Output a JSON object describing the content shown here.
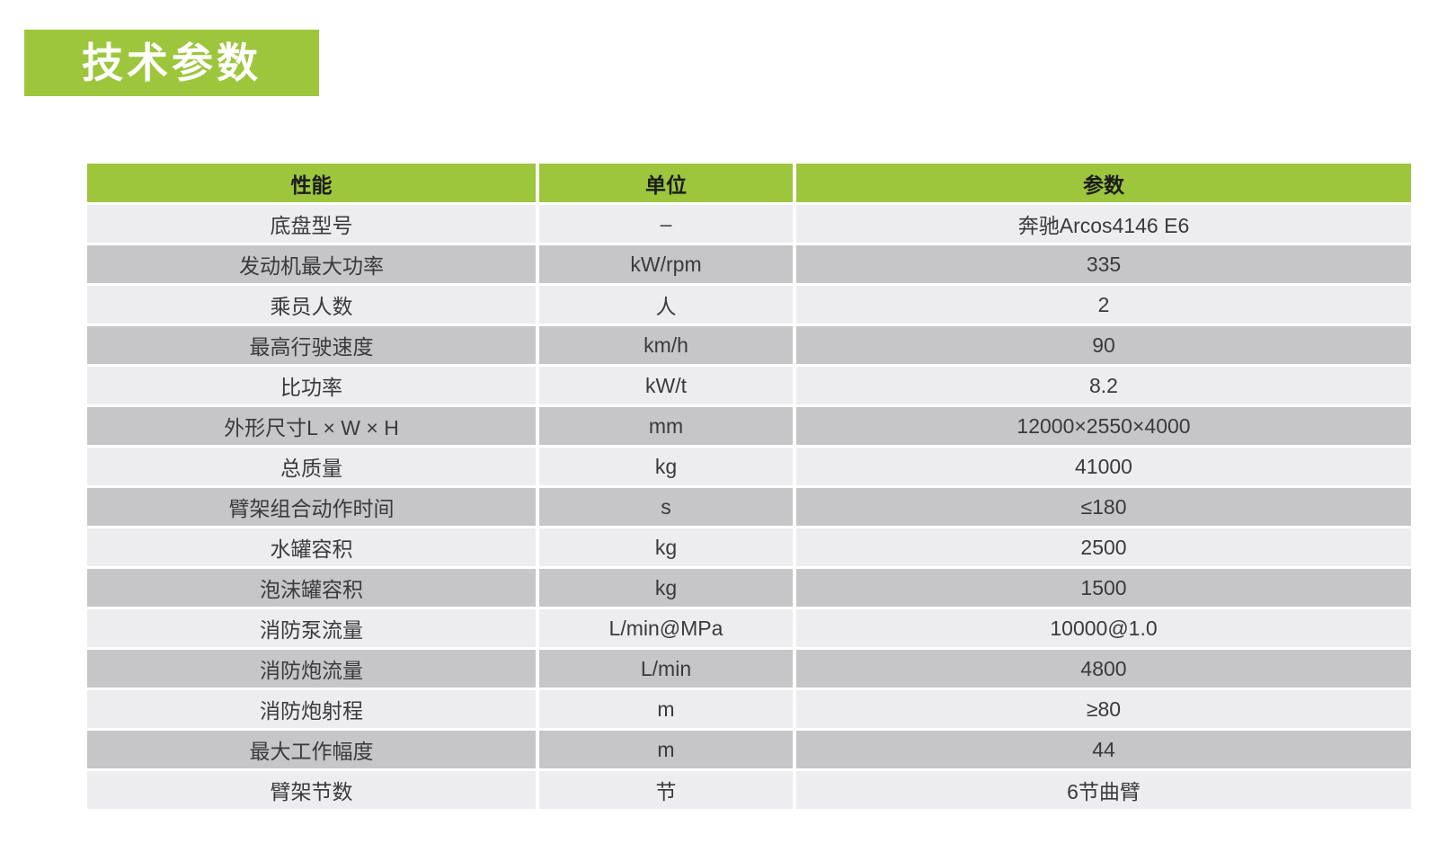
{
  "section": {
    "title": "技术参数",
    "badge_color": "#9dc63d",
    "title_color": "#ffffff"
  },
  "table": {
    "headers": [
      "性能",
      "单位",
      "参数"
    ],
    "header_bg": "#9dc63d",
    "row_colors": {
      "light": "#ededef",
      "dark": "#c6c6c8"
    },
    "rows": [
      {
        "property": "底盘型号",
        "unit": "–",
        "value": "奔驰Arcos4146 E6"
      },
      {
        "property": "发动机最大功率",
        "unit": "kW/rpm",
        "value": "335"
      },
      {
        "property": "乘员人数",
        "unit": "人",
        "value": "2"
      },
      {
        "property": "最高行驶速度",
        "unit": "km/h",
        "value": "90"
      },
      {
        "property": "比功率",
        "unit": "kW/t",
        "value": "8.2"
      },
      {
        "property": "外形尺寸L × W × H",
        "unit": "mm",
        "value": "12000×2550×4000"
      },
      {
        "property": "总质量",
        "unit": "kg",
        "value": "41000"
      },
      {
        "property": "臂架组合动作时间",
        "unit": "s",
        "value": "≤180"
      },
      {
        "property": "水罐容积",
        "unit": "kg",
        "value": "2500"
      },
      {
        "property": "泡沫罐容积",
        "unit": "kg",
        "value": "1500"
      },
      {
        "property": "消防泵流量",
        "unit": "L/min@MPa",
        "value": "10000@1.0"
      },
      {
        "property": "消防炮流量",
        "unit": "L/min",
        "value": "4800"
      },
      {
        "property": "消防炮射程",
        "unit": "m",
        "value": "≥80"
      },
      {
        "property": "最大工作幅度",
        "unit": "m",
        "value": "44"
      },
      {
        "property": "臂架节数",
        "unit": "节",
        "value": "6节曲臂"
      }
    ]
  }
}
